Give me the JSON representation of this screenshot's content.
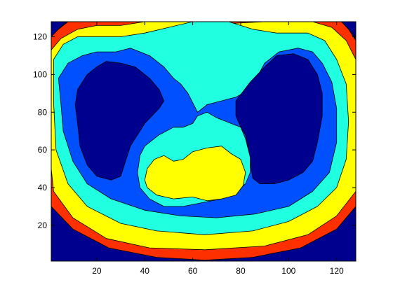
{
  "chart_data": {
    "type": "contourf",
    "title": "",
    "xlabel": "",
    "ylabel": "",
    "xlim": [
      1,
      128
    ],
    "ylim": [
      1,
      128
    ],
    "xticks": [
      20,
      40,
      60,
      80,
      100,
      120
    ],
    "yticks": [
      20,
      40,
      60,
      80,
      100,
      120
    ],
    "xtick_labels": [
      "20",
      "40",
      "60",
      "80",
      "100",
      "120"
    ],
    "ytick_labels": [
      "20",
      "40",
      "60",
      "80",
      "100",
      "120"
    ],
    "grid": false,
    "legend": "none",
    "colormap": "jet",
    "levels": [
      {
        "name": "level-1",
        "color": "#00008f"
      },
      {
        "name": "level-2",
        "color": "#0050ff"
      },
      {
        "name": "level-3",
        "color": "#20ffdf"
      },
      {
        "name": "level-4",
        "color": "#ffff00"
      },
      {
        "name": "level-5",
        "color": "#ff3000"
      }
    ],
    "regions": [
      {
        "name": "outer-background-bottom",
        "level": 1,
        "points": [
          [
            1,
            1
          ],
          [
            128,
            1
          ],
          [
            128,
            30
          ],
          [
            120,
            18
          ],
          [
            105,
            8
          ],
          [
            85,
            3
          ],
          [
            65,
            1.5
          ],
          [
            45,
            3
          ],
          [
            25,
            8
          ],
          [
            10,
            18
          ],
          [
            1,
            30
          ]
        ]
      },
      {
        "name": "outer-background-top-left",
        "level": 1,
        "points": [
          [
            1,
            128
          ],
          [
            7,
            128
          ],
          [
            4,
            124
          ],
          [
            1,
            120
          ]
        ]
      },
      {
        "name": "outer-background-top-right",
        "level": 1,
        "points": [
          [
            128,
            128
          ],
          [
            122,
            128
          ],
          [
            125,
            124
          ],
          [
            128,
            120
          ]
        ]
      },
      {
        "name": "red-ring",
        "level": 5,
        "points": [
          [
            1,
            120
          ],
          [
            4,
            124
          ],
          [
            8,
            128
          ],
          [
            122,
            128
          ],
          [
            125,
            124
          ],
          [
            128,
            118
          ],
          [
            128,
            30
          ],
          [
            120,
            18
          ],
          [
            105,
            8
          ],
          [
            85,
            3
          ],
          [
            65,
            1.5
          ],
          [
            45,
            3
          ],
          [
            25,
            8
          ],
          [
            10,
            18
          ],
          [
            1,
            30
          ]
        ]
      },
      {
        "name": "yellow-ring",
        "level": 4,
        "points": [
          [
            1,
            113
          ],
          [
            5,
            119
          ],
          [
            12,
            124
          ],
          [
            20,
            126
          ],
          [
            30,
            126
          ],
          [
            40,
            128
          ],
          [
            60,
            128
          ],
          [
            75,
            127
          ],
          [
            90,
            128
          ],
          [
            110,
            128
          ],
          [
            118,
            125
          ],
          [
            124,
            118
          ],
          [
            128,
            108
          ],
          [
            128,
            38
          ],
          [
            120,
            25
          ],
          [
            108,
            15
          ],
          [
            90,
            9
          ],
          [
            65,
            7
          ],
          [
            42,
            8
          ],
          [
            24,
            13
          ],
          [
            10,
            24
          ],
          [
            2,
            38
          ],
          [
            1,
            50
          ]
        ]
      },
      {
        "name": "cyan-ring",
        "level": 3,
        "points": [
          [
            2,
            108
          ],
          [
            6,
            116
          ],
          [
            12,
            120
          ],
          [
            20,
            120
          ],
          [
            30,
            120
          ],
          [
            40,
            122
          ],
          [
            50,
            125
          ],
          [
            60,
            128
          ],
          [
            75,
            128
          ],
          [
            85,
            124
          ],
          [
            95,
            122
          ],
          [
            108,
            122
          ],
          [
            115,
            118
          ],
          [
            120,
            108
          ],
          [
            124,
            95
          ],
          [
            125,
            75
          ],
          [
            124,
            55
          ],
          [
            120,
            40
          ],
          [
            112,
            30
          ],
          [
            100,
            22
          ],
          [
            85,
            17
          ],
          [
            65,
            15
          ],
          [
            45,
            17
          ],
          [
            30,
            21
          ],
          [
            16,
            30
          ],
          [
            8,
            42
          ],
          [
            3,
            60
          ],
          [
            2,
            85
          ]
        ]
      },
      {
        "name": "blue-ring",
        "level": 2,
        "points": [
          [
            4,
            98
          ],
          [
            8,
            106
          ],
          [
            14,
            110
          ],
          [
            20,
            112
          ],
          [
            28,
            112
          ],
          [
            34,
            114
          ],
          [
            42,
            110
          ],
          [
            48,
            104
          ],
          [
            52,
            98
          ],
          [
            55,
            95
          ],
          [
            58,
            90
          ],
          [
            62,
            80
          ],
          [
            66,
            84
          ],
          [
            72,
            86
          ],
          [
            78,
            88
          ],
          [
            84,
            92
          ],
          [
            90,
            106
          ],
          [
            96,
            112
          ],
          [
            104,
            114
          ],
          [
            110,
            112
          ],
          [
            114,
            106
          ],
          [
            118,
            96
          ],
          [
            120,
            82
          ],
          [
            120,
            64
          ],
          [
            117,
            48
          ],
          [
            110,
            38
          ],
          [
            100,
            30
          ],
          [
            86,
            26
          ],
          [
            70,
            24
          ],
          [
            55,
            25
          ],
          [
            40,
            28
          ],
          [
            26,
            34
          ],
          [
            16,
            42
          ],
          [
            10,
            54
          ],
          [
            6,
            70
          ],
          [
            5,
            85
          ]
        ]
      },
      {
        "name": "left-lung-cavity",
        "level": 1,
        "points": [
          [
            12,
            92
          ],
          [
            16,
            100
          ],
          [
            20,
            104
          ],
          [
            24,
            107
          ],
          [
            30,
            106
          ],
          [
            36,
            104
          ],
          [
            42,
            98
          ],
          [
            46,
            92
          ],
          [
            48,
            86
          ],
          [
            46,
            82
          ],
          [
            40,
            74
          ],
          [
            38,
            70
          ],
          [
            34,
            62
          ],
          [
            32,
            54
          ],
          [
            30,
            46
          ],
          [
            26,
            44
          ],
          [
            20,
            46
          ],
          [
            16,
            52
          ],
          [
            13,
            62
          ],
          [
            12,
            74
          ],
          [
            11,
            84
          ]
        ]
      },
      {
        "name": "right-lung-cavity",
        "level": 1,
        "points": [
          [
            78,
            86
          ],
          [
            84,
            96
          ],
          [
            90,
            104
          ],
          [
            95,
            110
          ],
          [
            102,
            111
          ],
          [
            108,
            108
          ],
          [
            112,
            100
          ],
          [
            114,
            90
          ],
          [
            114,
            78
          ],
          [
            112,
            64
          ],
          [
            110,
            54
          ],
          [
            106,
            48
          ],
          [
            100,
            44
          ],
          [
            94,
            42
          ],
          [
            88,
            42
          ],
          [
            85,
            45
          ],
          [
            84,
            54
          ],
          [
            83,
            62
          ],
          [
            82,
            68
          ],
          [
            80,
            72
          ],
          [
            78,
            78
          ]
        ]
      },
      {
        "name": "central-cyan-lobe",
        "level": 3,
        "points": [
          [
            38,
            57
          ],
          [
            40,
            62
          ],
          [
            46,
            68
          ],
          [
            52,
            72
          ],
          [
            56,
            72
          ],
          [
            60,
            74
          ],
          [
            62,
            78
          ],
          [
            66,
            80
          ],
          [
            70,
            77
          ],
          [
            76,
            74
          ],
          [
            80,
            72
          ],
          [
            82,
            66
          ],
          [
            84,
            56
          ],
          [
            84,
            48
          ],
          [
            82,
            42
          ],
          [
            78,
            38
          ],
          [
            72,
            34
          ],
          [
            64,
            32
          ],
          [
            56,
            30
          ],
          [
            48,
            30
          ],
          [
            42,
            34
          ],
          [
            38,
            40
          ],
          [
            37,
            48
          ]
        ]
      },
      {
        "name": "yellow-heart",
        "level": 4,
        "points": [
          [
            40,
            44
          ],
          [
            41,
            50
          ],
          [
            44,
            55
          ],
          [
            48,
            57
          ],
          [
            52,
            54
          ],
          [
            56,
            55
          ],
          [
            60,
            59
          ],
          [
            66,
            61
          ],
          [
            72,
            62
          ],
          [
            76,
            58
          ],
          [
            80,
            55
          ],
          [
            82,
            48
          ],
          [
            81,
            41
          ],
          [
            78,
            36
          ],
          [
            72,
            34
          ],
          [
            66,
            33
          ],
          [
            60,
            35
          ],
          [
            52,
            34
          ],
          [
            45,
            36
          ],
          [
            41,
            40
          ]
        ]
      }
    ]
  }
}
